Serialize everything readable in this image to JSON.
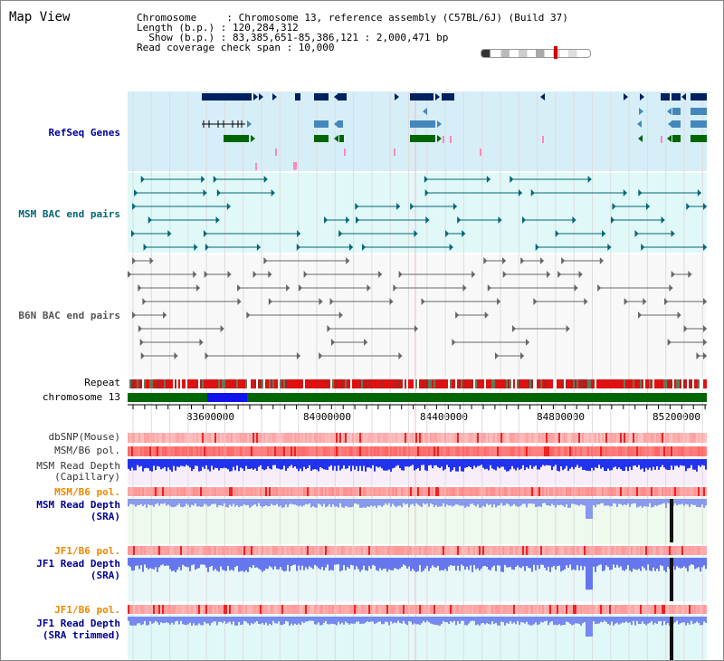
{
  "view_title": "Map View",
  "header": {
    "line1": "Chromosome     : Chromosome 13, reference assembly (C57BL/6J) (Build 37)",
    "line2": "Length (b.p.) : 120,284,312",
    "line3": "  Show (b.p.) : 83,385,651-85,386,121 : 2,000,471 bp",
    "line4": "Read coverage check span : 10,000"
  },
  "tracks": {
    "refseq": "RefSeq Genes",
    "msm_bac": "MSM BAC end pairs",
    "b6n_bac": "B6N BAC end pairs",
    "repeat": "Repeat",
    "chromosome": "chromosome 13",
    "dbsnp": "dbSNP(Mouse)",
    "msm_b6_pol_1": "MSM/B6 pol.",
    "msm_depth_cap_1": "MSM Read Depth",
    "msm_depth_cap_2": "(Capillary)",
    "msm_b6_pol_2": "MSM/B6 pol.",
    "msm_depth_sra_1": "MSM Read Depth",
    "msm_depth_sra_2": "(SRA)",
    "jf1_b6_pol_1": "JF1/B6 pol.",
    "jf1_depth_sra_1": "JF1 Read Depth",
    "jf1_depth_sra_2": "(SRA)",
    "jf1_b6_pol_2": "JF1/B6 pol.",
    "jf1_depth_trim_1": "JF1 Read Depth",
    "jf1_depth_trim_2": "(SRA trimmed)"
  },
  "axis": {
    "ticks": [
      "83600000",
      "84000000",
      "84400000",
      "84800000",
      "85200000"
    ]
  },
  "colors": {
    "refseq_label": "#000099",
    "msm_bac_label": "#006677",
    "b6n_bac_label": "#555555",
    "pol_label_orange": "#ee8800",
    "depth_label_blue": "#000099",
    "gene_navy": "#002060",
    "gene_steel": "#4488bb",
    "gene_green": "#006600",
    "chromosome_green": "#006600",
    "chromosome_highlight": "#1111ee"
  }
}
